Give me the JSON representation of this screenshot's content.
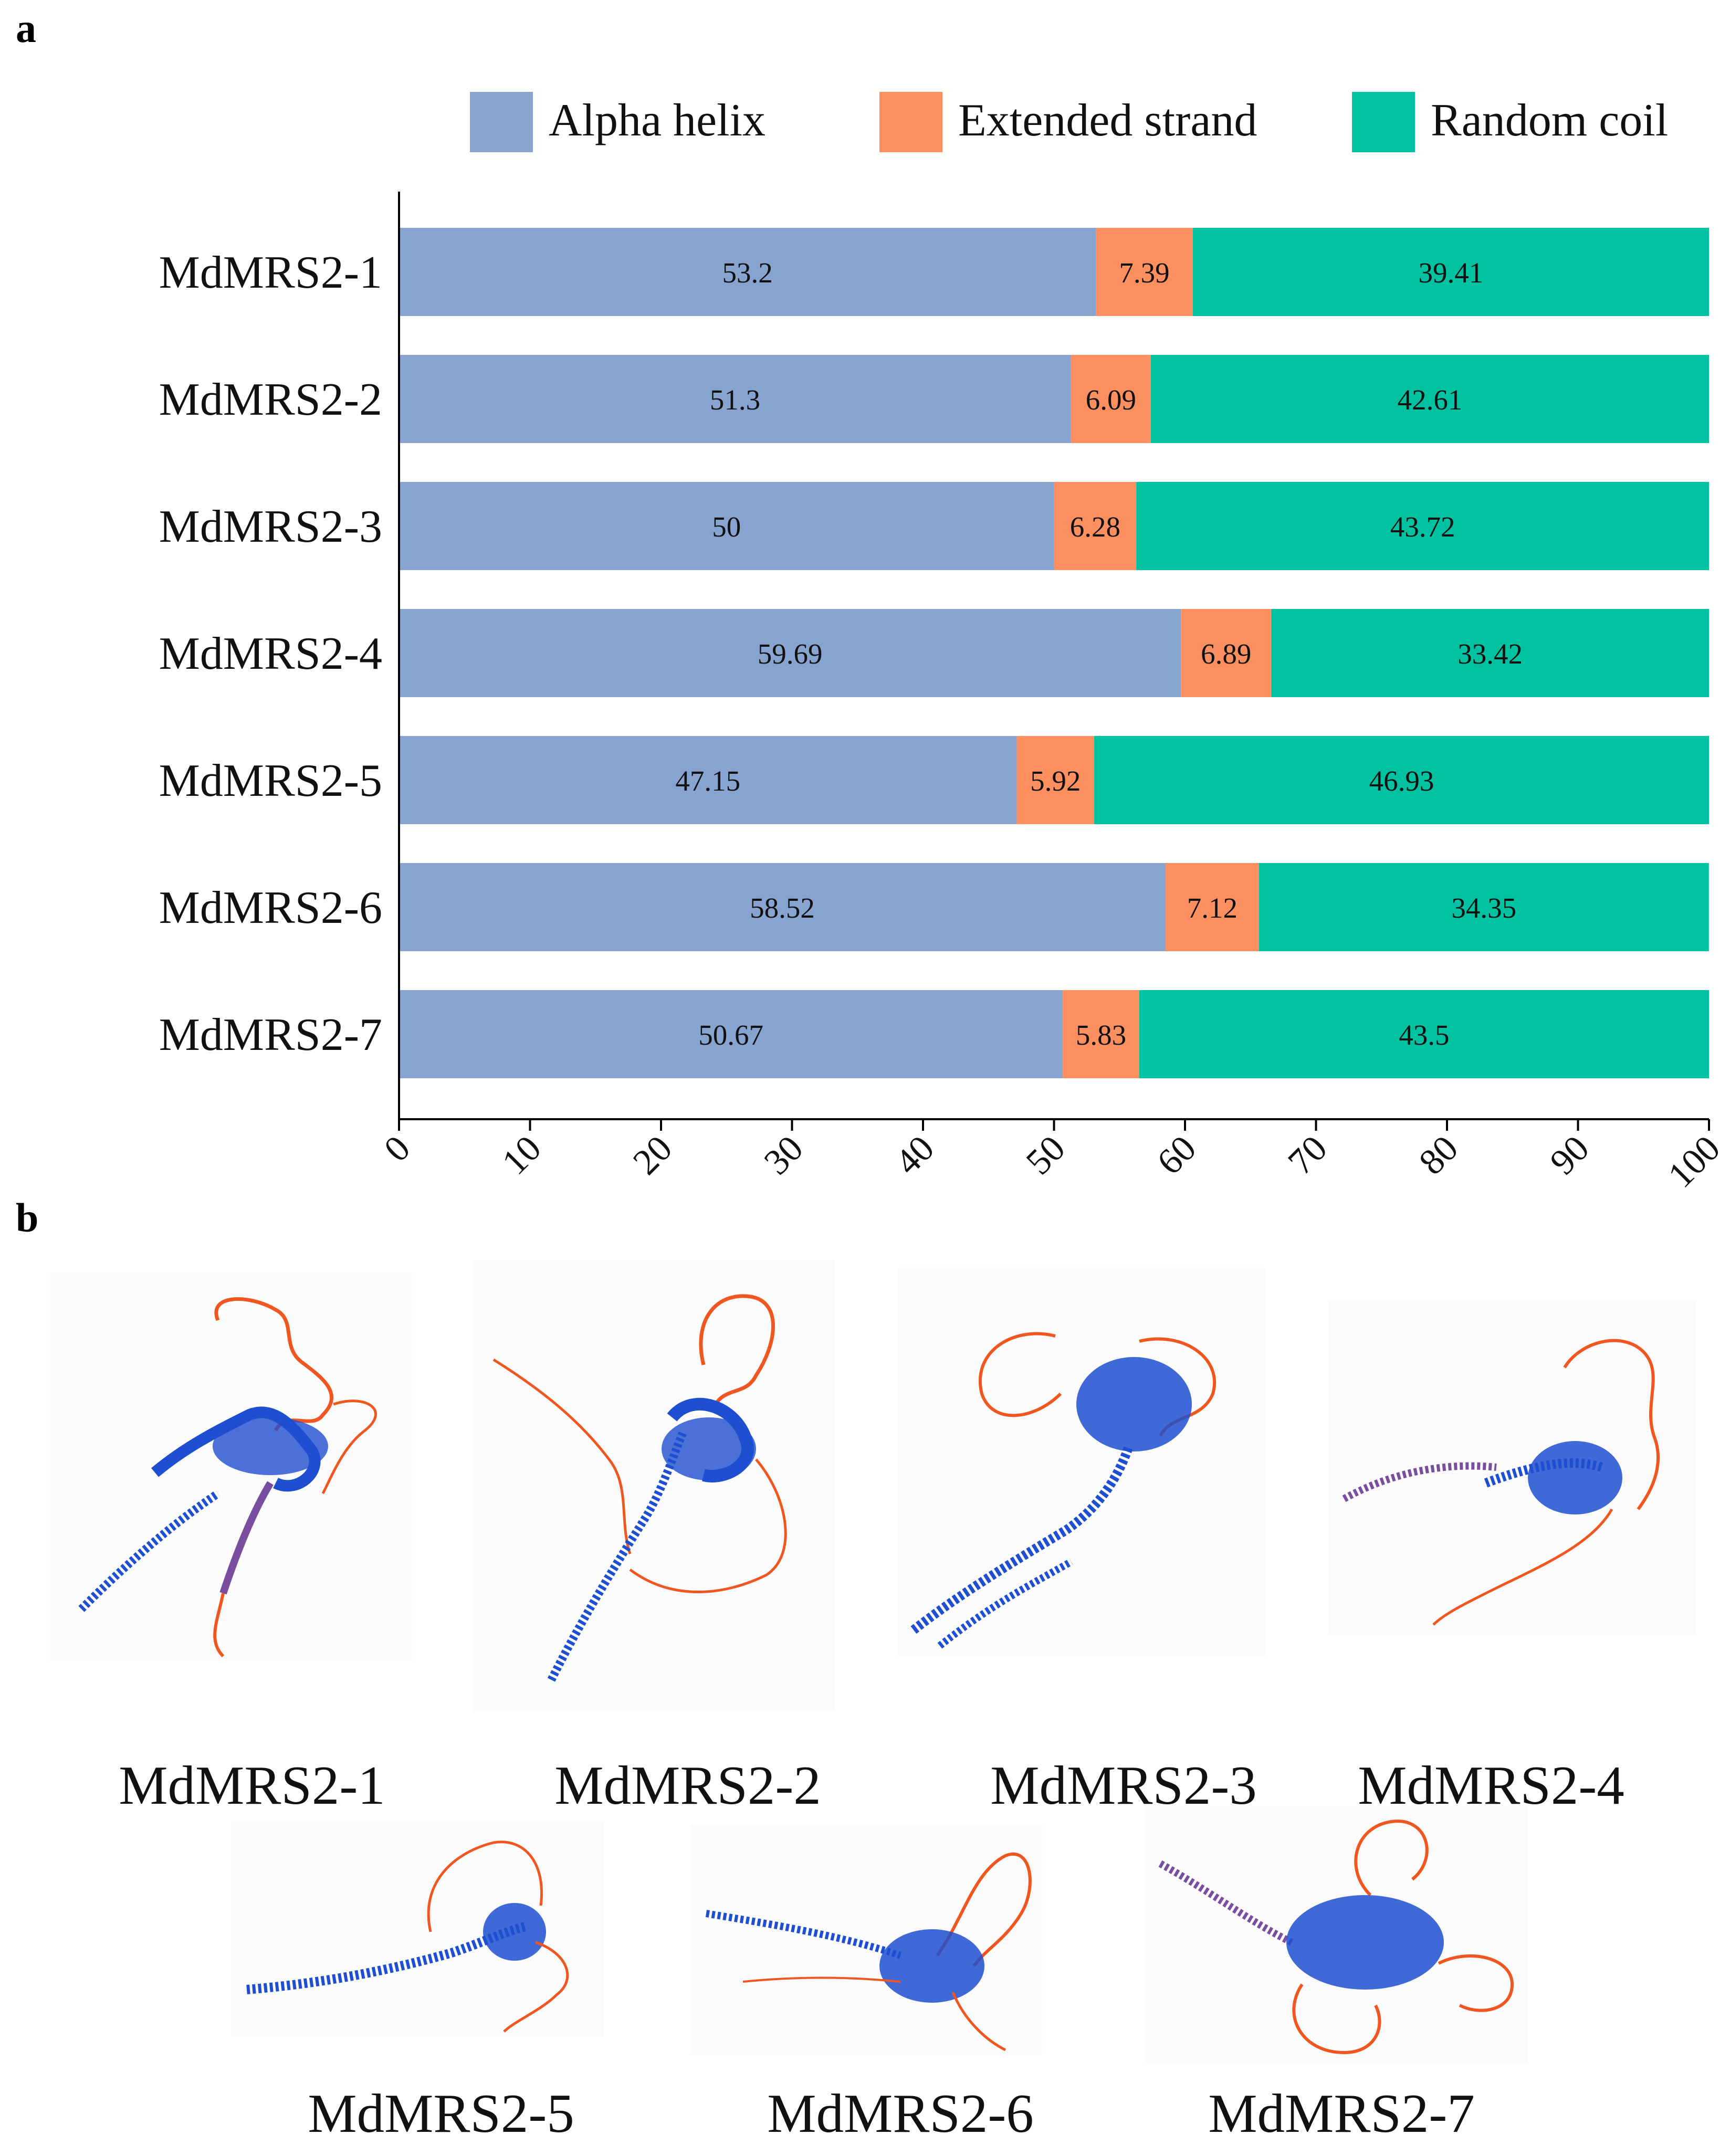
{
  "panel_a_label": "a",
  "panel_b_label": "b",
  "colors": {
    "alpha_helix": "#87A3CF",
    "extended_strand": "#FC8F5F",
    "random_coil": "#00C2A1",
    "structure_core": "#1F4FD1",
    "structure_loop": "#F0561F",
    "structure_mid": "#7A4E9E"
  },
  "chart_data": {
    "type": "bar",
    "orientation": "horizontal",
    "stacked": true,
    "categories": [
      "MdMRS2-1",
      "MdMRS2-2",
      "MdMRS2-3",
      "MdMRS2-4",
      "MdMRS2-5",
      "MdMRS2-6",
      "MdMRS2-7"
    ],
    "series": [
      {
        "name": "Alpha helix",
        "color": "#87A3CF",
        "values": [
          53.2,
          51.3,
          50,
          59.69,
          47.15,
          58.52,
          50.67
        ],
        "labels": [
          "53.2",
          "51.3",
          "50",
          "59.69",
          "47.15",
          "58.52",
          "50.67"
        ]
      },
      {
        "name": "Extended strand",
        "color": "#FC8F5F",
        "values": [
          7.39,
          6.09,
          6.28,
          6.89,
          5.92,
          7.12,
          5.83
        ],
        "labels": [
          "7.39",
          "6.09",
          "6.28",
          "6.89",
          "5.92",
          "7.12",
          "5.83"
        ]
      },
      {
        "name": "Random coil",
        "color": "#00C2A1",
        "values": [
          39.41,
          42.61,
          43.72,
          33.42,
          46.93,
          34.35,
          43.5
        ],
        "labels": [
          "39.41",
          "42.61",
          "43.72",
          "33.42",
          "46.93",
          "34.35",
          "43.5"
        ]
      }
    ],
    "x_ticks": [
      0,
      10,
      20,
      30,
      40,
      50,
      60,
      70,
      80,
      90,
      100
    ],
    "xlim": [
      0,
      100
    ],
    "legend": "top",
    "grid": false
  },
  "structures": [
    {
      "label": "MdMRS2-1",
      "icon": "protein-structure-1"
    },
    {
      "label": "MdMRS2-2",
      "icon": "protein-structure-2"
    },
    {
      "label": "MdMRS2-3",
      "icon": "protein-structure-3"
    },
    {
      "label": "MdMRS2-4",
      "icon": "protein-structure-4"
    },
    {
      "label": "MdMRS2-5",
      "icon": "protein-structure-5"
    },
    {
      "label": "MdMRS2-6",
      "icon": "protein-structure-6"
    },
    {
      "label": "MdMRS2-7",
      "icon": "protein-structure-7"
    }
  ]
}
